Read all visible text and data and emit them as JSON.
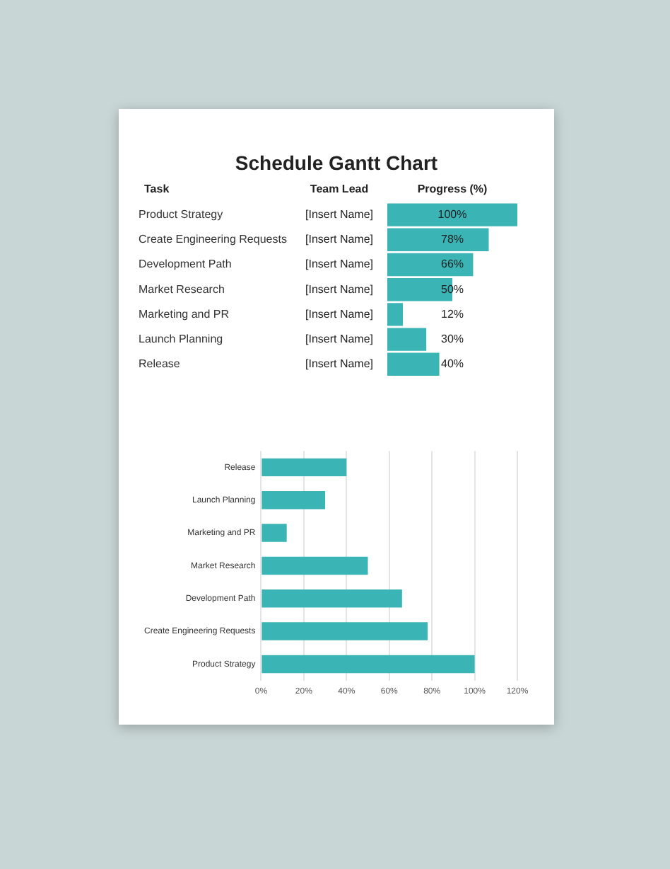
{
  "chart_data": [
    {
      "type": "bar",
      "orientation": "horizontal",
      "title": "Schedule Gantt Chart",
      "ylabel": "Task",
      "xlabel": "Progress (%)",
      "tick_labels": "y",
      "categories": [
        "Product Strategy",
        "Create Engineering Requests",
        "Development Path",
        "Market Research",
        "Marketing and PR",
        "Launch Planning",
        "Release"
      ],
      "values": [
        100,
        78,
        66,
        50,
        12,
        30,
        40
      ],
      "color": "#3bb4b6",
      "value_labels": [
        "100%",
        "78%",
        "66%",
        "50%",
        "12%",
        "30%",
        "40%"
      ],
      "annotations": [
        "Team Lead",
        "[Insert Name]",
        "[Insert Name]",
        "[Insert Name]",
        "[Insert Name]",
        "[Insert Name]",
        "[Insert Name]",
        "[Insert Name]"
      ]
    },
    {
      "type": "bar",
      "orientation": "horizontal",
      "categories": [
        "Release",
        "Launch Planning",
        "Marketing and PR",
        "Market Research",
        "Development Path",
        "Create Engineering Requests",
        "Product Strategy"
      ],
      "values": [
        40,
        30,
        12,
        50,
        66,
        78,
        100
      ],
      "color": "#3bb4b6",
      "xlim": [
        0,
        120
      ],
      "xticks": [
        {
          "value": 0,
          "label": "0%"
        },
        {
          "value": 20,
          "label": "20%"
        },
        {
          "value": 40,
          "label": "40%"
        },
        {
          "value": 60,
          "label": "60%"
        },
        {
          "value": 80,
          "label": "80%"
        },
        {
          "value": 100,
          "label": "100%"
        },
        {
          "value": 120,
          "label": "120%"
        }
      ],
      "grid": "x"
    }
  ]
}
